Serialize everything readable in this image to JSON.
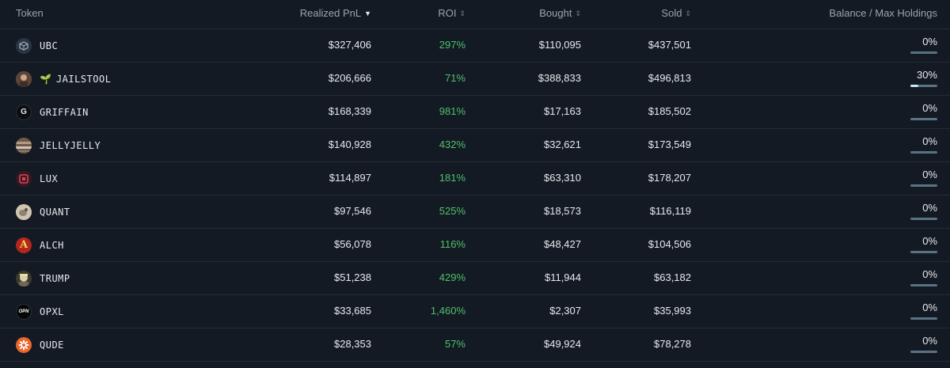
{
  "columns": {
    "token": "Token",
    "pnl": "Realized PnL",
    "roi": "ROI",
    "bought": "Bought",
    "sold": "Sold",
    "balance": "Balance / Max Holdings"
  },
  "sort": {
    "active_column": "pnl",
    "direction": "descending"
  },
  "colors": {
    "roi_positive": "#4fc06a",
    "bar_track": "#5a7384",
    "bar_fill": "#cfe3ff"
  },
  "rows": [
    {
      "token": "UBC",
      "icon": "ubc-cube-icon",
      "pnl": "$327,406",
      "roi": "297%",
      "bought": "$110,095",
      "sold": "$437,501",
      "balance": "0%",
      "balance_fraction": 0
    },
    {
      "token": "JAILSTOOL",
      "icon": "jailstool-avatar-icon",
      "badge_icon": "sprout-icon",
      "pnl": "$206,666",
      "roi": "71%",
      "bought": "$388,833",
      "sold": "$496,813",
      "balance": "30%",
      "balance_fraction": 0.3
    },
    {
      "token": "GRIFFAIN",
      "icon": "griffain-g-icon",
      "logo_text": "G",
      "pnl": "$168,339",
      "roi": "981%",
      "bought": "$17,163",
      "sold": "$185,502",
      "balance": "0%",
      "balance_fraction": 0
    },
    {
      "token": "JELLYJELLY",
      "icon": "jellyjelly-icon",
      "pnl": "$140,928",
      "roi": "432%",
      "bought": "$32,621",
      "sold": "$173,549",
      "balance": "0%",
      "balance_fraction": 0
    },
    {
      "token": "LUX",
      "icon": "lux-icon",
      "pnl": "$114,897",
      "roi": "181%",
      "bought": "$63,310",
      "sold": "$178,207",
      "balance": "0%",
      "balance_fraction": 0
    },
    {
      "token": "QUANT",
      "icon": "quant-icon",
      "pnl": "$97,546",
      "roi": "525%",
      "bought": "$18,573",
      "sold": "$116,119",
      "balance": "0%",
      "balance_fraction": 0
    },
    {
      "token": "ALCH",
      "icon": "alch-icon",
      "logo_text": "A",
      "pnl": "$56,078",
      "roi": "116%",
      "bought": "$48,427",
      "sold": "$104,506",
      "balance": "0%",
      "balance_fraction": 0
    },
    {
      "token": "TRUMP",
      "icon": "trump-icon",
      "pnl": "$51,238",
      "roi": "429%",
      "bought": "$11,944",
      "sold": "$63,182",
      "balance": "0%",
      "balance_fraction": 0
    },
    {
      "token": "OPXL",
      "icon": "opxl-icon",
      "logo_text": "OPN",
      "pnl": "$33,685",
      "roi": "1,460%",
      "bought": "$2,307",
      "sold": "$35,993",
      "balance": "0%",
      "balance_fraction": 0
    },
    {
      "token": "QUDE",
      "icon": "qude-icon",
      "pnl": "$28,353",
      "roi": "57%",
      "bought": "$49,924",
      "sold": "$78,278",
      "balance": "0%",
      "balance_fraction": 0
    }
  ]
}
